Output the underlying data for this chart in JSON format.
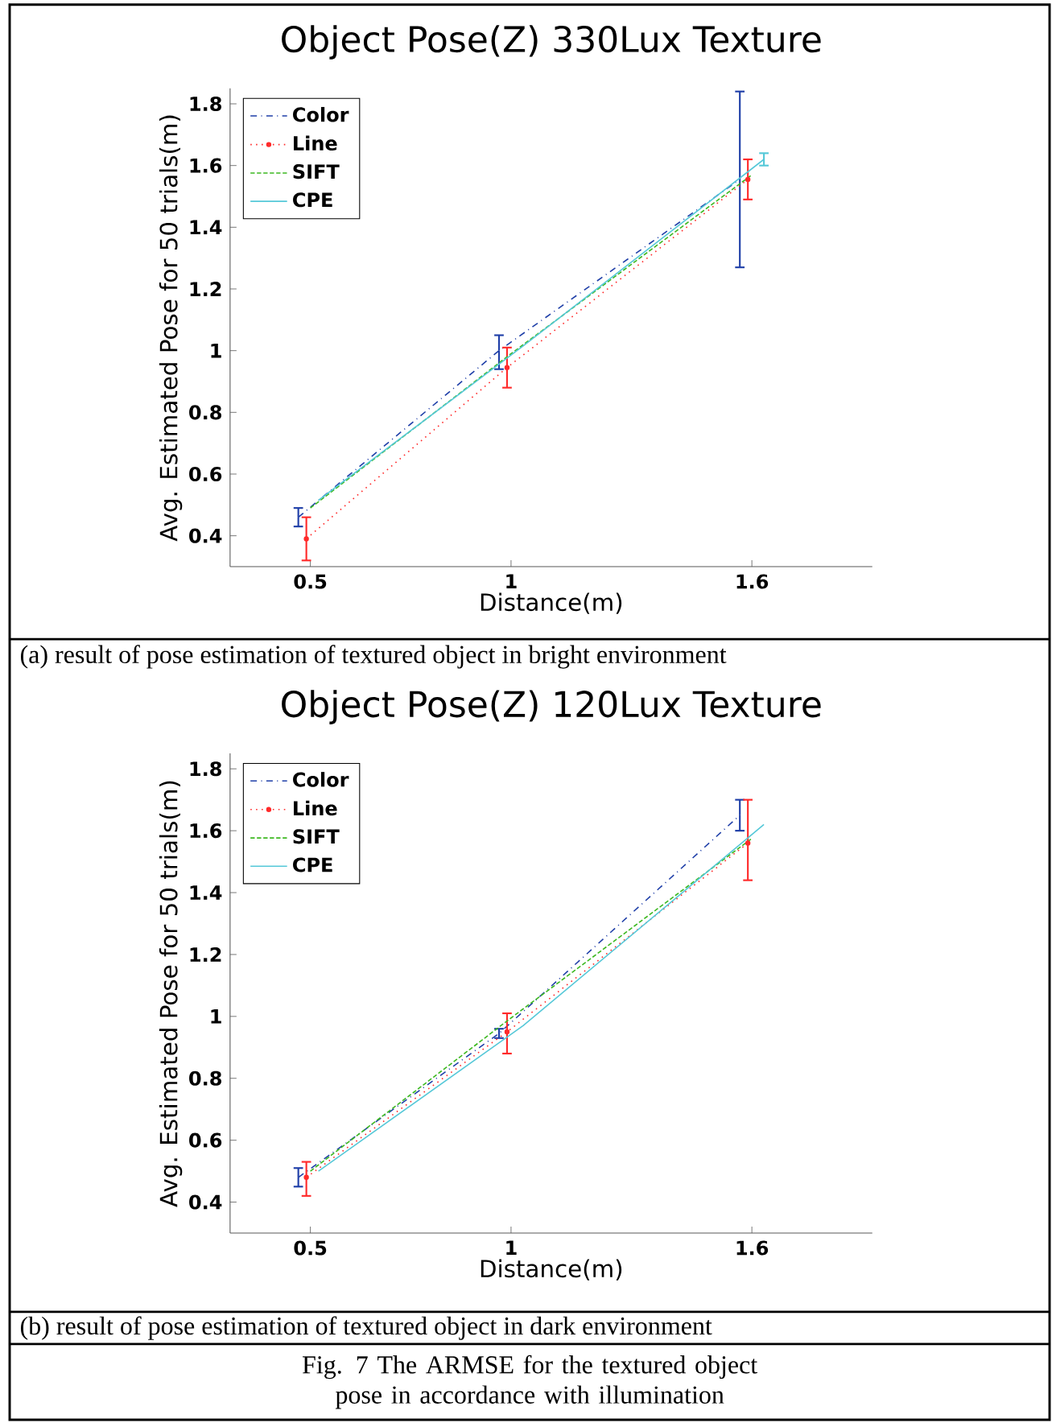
{
  "chart_data": [
    {
      "type": "line",
      "title": "Object Pose(Z) 330Lux Texture",
      "xlabel": "Distance(m)",
      "ylabel": "Avg. Estimated Pose for 50 trials(m)",
      "xlim": [
        0.3,
        1.9
      ],
      "ylim": [
        0.3,
        1.85
      ],
      "xticks": [
        0.5,
        1,
        1.6
      ],
      "yticks": [
        0.4,
        0.6,
        0.8,
        1,
        1.2,
        1.4,
        1.6,
        1.8
      ],
      "legend": "top left",
      "series": [
        {
          "name": "Color",
          "color": "#1f3fa8",
          "line_style": "dashdot",
          "x": [
            0.47,
            0.97,
            1.57
          ],
          "values": [
            0.46,
            1.0,
            1.555
          ],
          "errors": [
            [
              0.43,
              0.49
            ],
            [
              0.94,
              1.05
            ],
            [
              1.27,
              1.84
            ]
          ]
        },
        {
          "name": "Line",
          "color": "#ff2a2a",
          "line_style": "dotted",
          "marker": "circle",
          "x": [
            0.49,
            0.99,
            1.59
          ],
          "values": [
            0.39,
            0.945,
            1.555
          ],
          "errors": [
            [
              0.32,
              0.46
            ],
            [
              0.88,
              1.01
            ],
            [
              1.49,
              1.62
            ]
          ]
        },
        {
          "name": "SIFT",
          "color": "#3cb820",
          "line_style": "dashed",
          "x": [
            0.5,
            1.0,
            1.6
          ],
          "values": [
            0.49,
            0.99,
            1.57
          ]
        },
        {
          "name": "CPE",
          "color": "#55c8d8",
          "line_style": "solid",
          "x": [
            0.52,
            1.03,
            1.63
          ],
          "values": [
            0.515,
            1.015,
            1.62
          ],
          "errors": [
            null,
            null,
            [
              1.6,
              1.64
            ]
          ]
        }
      ],
      "annotations": [
        "(a) result of pose estimation of textured object in bright environment"
      ]
    },
    {
      "type": "line",
      "title": "Object Pose(Z) 120Lux Texture",
      "xlabel": "Distance(m)",
      "ylabel": "Avg. Estimated Pose for 50 trials(m)",
      "xlim": [
        0.3,
        1.9
      ],
      "ylim": [
        0.3,
        1.85
      ],
      "xticks": [
        0.5,
        1,
        1.6
      ],
      "yticks": [
        0.4,
        0.6,
        0.8,
        1,
        1.2,
        1.4,
        1.6,
        1.8
      ],
      "legend": "top left",
      "series": [
        {
          "name": "Color",
          "color": "#1f3fa8",
          "line_style": "dashdot",
          "x": [
            0.47,
            0.97,
            1.57
          ],
          "values": [
            0.48,
            0.945,
            1.65
          ],
          "errors": [
            [
              0.45,
              0.51
            ],
            [
              0.93,
              0.96
            ],
            [
              1.6,
              1.7
            ]
          ]
        },
        {
          "name": "Line",
          "color": "#ff2a2a",
          "line_style": "dotted",
          "marker": "circle",
          "x": [
            0.49,
            0.99,
            1.59
          ],
          "values": [
            0.48,
            0.95,
            1.56
          ],
          "errors": [
            [
              0.42,
              0.53
            ],
            [
              0.88,
              1.01
            ],
            [
              1.44,
              1.7
            ]
          ]
        },
        {
          "name": "SIFT",
          "color": "#3cb820",
          "line_style": "dashed",
          "x": [
            0.5,
            1.0,
            1.6
          ],
          "values": [
            0.5,
            0.995,
            1.575
          ]
        },
        {
          "name": "CPE",
          "color": "#55c8d8",
          "line_style": "solid",
          "x": [
            0.52,
            1.03,
            1.63
          ],
          "values": [
            0.5,
            0.97,
            1.62
          ]
        }
      ],
      "annotations": [
        "(b) result of pose estimation of textured object in dark environment",
        "Fig. 7 The ARMSE for the textured object pose in accordance with illumination"
      ]
    }
  ]
}
